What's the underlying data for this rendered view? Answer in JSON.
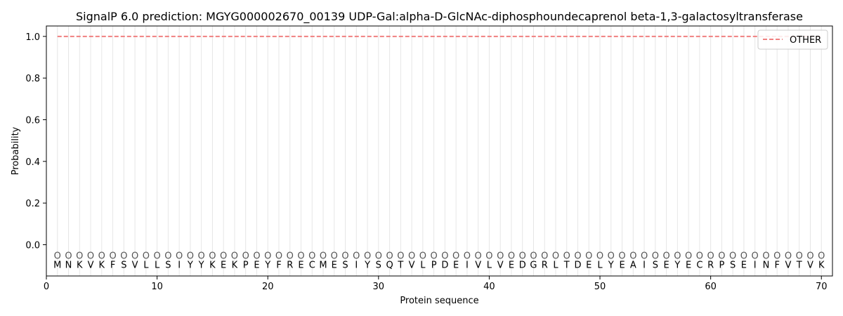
{
  "chart_data": {
    "type": "line",
    "title": "SignalP 6.0 prediction: MGYG000002670_00139 UDP-Gal:alpha-D-GlcNAc-diphosphoundecaprenol beta-1,3-galactosyltransferase",
    "xlabel": "Protein sequence",
    "ylabel": "Probability",
    "xlim": [
      0,
      71
    ],
    "ylim": [
      -0.15,
      1.05
    ],
    "xticks": [
      0,
      10,
      20,
      30,
      40,
      50,
      60,
      70
    ],
    "yticks": [
      0.0,
      0.2,
      0.4,
      0.6,
      0.8,
      1.0
    ],
    "ytick_labels": [
      "0.0",
      "0.2",
      "0.4",
      "0.6",
      "0.8",
      "1.0"
    ],
    "sequence": [
      "M",
      "N",
      "K",
      "V",
      "K",
      "F",
      "S",
      "V",
      "L",
      "L",
      "S",
      "I",
      "Y",
      "Y",
      "K",
      "E",
      "K",
      "P",
      "E",
      "Y",
      "F",
      "R",
      "E",
      "C",
      "M",
      "E",
      "S",
      "I",
      "Y",
      "S",
      "Q",
      "T",
      "V",
      "L",
      "P",
      "D",
      "E",
      "I",
      "V",
      "L",
      "V",
      "E",
      "D",
      "G",
      "R",
      "L",
      "T",
      "D",
      "E",
      "L",
      "Y",
      "E",
      "A",
      "I",
      "S",
      "E",
      "Y",
      "E",
      "C",
      "R",
      "P",
      "S",
      "E",
      "I",
      "N",
      "F",
      "V",
      "T",
      "V",
      "K"
    ],
    "region_marker": "O",
    "series": [
      {
        "name": "OTHER",
        "color": "#f08080",
        "style": "dashed",
        "x_start": 1,
        "x_end": 70,
        "value": 1.0
      }
    ],
    "legend": {
      "position": "top-right"
    },
    "grid": {
      "vertical": true,
      "horizontal": false
    }
  }
}
